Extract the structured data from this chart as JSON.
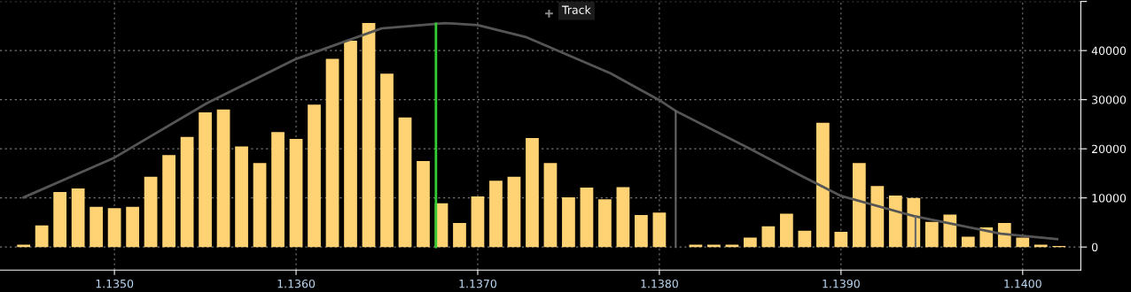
{
  "chart_data": {
    "type": "bar",
    "x": [
      1.1345,
      1.1346,
      1.1347,
      1.1348,
      1.1349,
      1.135,
      1.1351,
      1.1352,
      1.1353,
      1.1354,
      1.1355,
      1.1356,
      1.1357,
      1.1358,
      1.1359,
      1.136,
      1.1361,
      1.1362,
      1.1363,
      1.1364,
      1.1365,
      1.1366,
      1.1367,
      1.1368,
      1.1369,
      1.137,
      1.1371,
      1.1372,
      1.1373,
      1.1374,
      1.1375,
      1.1376,
      1.1377,
      1.1378,
      1.1379,
      1.138,
      1.1381,
      1.1382,
      1.1383,
      1.1384,
      1.1385,
      1.1386,
      1.1387,
      1.1388,
      1.1389,
      1.139,
      1.1391,
      1.1392,
      1.1393,
      1.1394,
      1.1395,
      1.1396,
      1.1397,
      1.1398,
      1.1399,
      1.14,
      1.1401,
      1.1402
    ],
    "series": [
      {
        "color": "#ffd273",
        "values": [
          500,
          4400,
          11200,
          11900,
          8200,
          7900,
          8200,
          14300,
          18700,
          22400,
          27400,
          28000,
          20500,
          17100,
          23400,
          22000,
          29000,
          38300,
          42000,
          45600,
          35300,
          26400,
          17500,
          8900,
          4900,
          10300,
          13500,
          14300,
          22200,
          17100,
          10100,
          12100,
          9700,
          12200,
          6500,
          7000,
          null,
          500,
          500,
          500,
          1900,
          4200,
          6800,
          3300,
          25300,
          3100,
          17100,
          12400,
          10500,
          10000,
          5100,
          6600,
          2100,
          4000,
          4900,
          1900,
          500,
          200
        ]
      },
      {
        "type": "line",
        "color": "#555555",
        "x": [
          1.1345,
          1.135,
          1.13551,
          1.136,
          1.13647,
          1.13682,
          1.137,
          1.13727,
          1.13773,
          1.138,
          1.13809,
          1.1385,
          1.13877,
          1.139,
          1.1394,
          1.13988,
          1.14019
        ],
        "values": [
          10100,
          18200,
          29300,
          38300,
          44500,
          45600,
          45200,
          42700,
          35400,
          29900,
          27700,
          20000,
          14700,
          10400,
          6300,
          2700,
          1600
        ]
      }
    ],
    "xlim": [
      1.13437,
      1.14032
    ],
    "xticks": [
      {
        "value": 1.135,
        "label": "1.1350"
      },
      {
        "value": 1.136,
        "label": "1.1360"
      },
      {
        "value": 1.137,
        "label": "1.1370"
      },
      {
        "value": 1.138,
        "label": "1.1380"
      },
      {
        "value": 1.139,
        "label": "1.1390"
      },
      {
        "value": 1.14,
        "label": "1.1400"
      }
    ],
    "ylim": [
      -4700,
      50000
    ],
    "yticks": [
      0,
      10000,
      20000,
      30000,
      40000,
      {
        "value": 50000,
        "label": null
      }
    ],
    "ref_lines": [
      {
        "axis": "x",
        "value": 1.13677,
        "color": "#33cc33"
      },
      {
        "axis": "x",
        "value": 1.13809,
        "color": "#666666"
      },
      {
        "axis": "x",
        "value": 1.13941,
        "color": "#666666"
      }
    ],
    "annotations": [
      "Track"
    ],
    "grid": true
  }
}
